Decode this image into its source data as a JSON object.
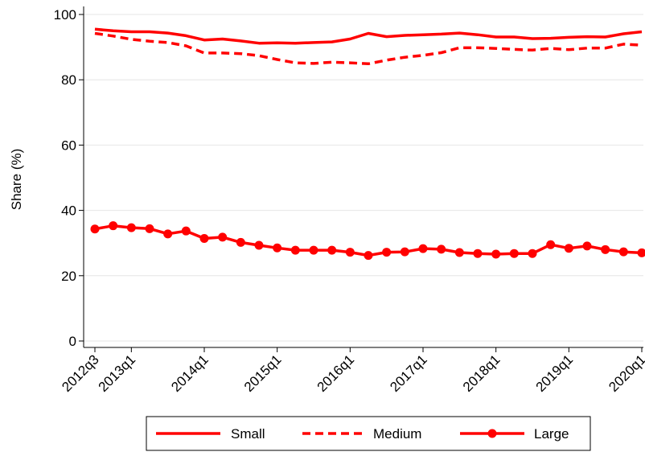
{
  "chart_data": {
    "type": "line",
    "title": "",
    "xlabel": "",
    "ylabel": "Share (%)",
    "ylim": [
      0,
      100
    ],
    "yticks": [
      0,
      20,
      40,
      60,
      80,
      100
    ],
    "xticks": [
      "2012q3",
      "2013q1",
      "2014q1",
      "2015q1",
      "2016q1",
      "2017q1",
      "2018q1",
      "2019q1",
      "2020q1"
    ],
    "x": [
      "2012q3",
      "2012q4",
      "2013q1",
      "2013q2",
      "2013q3",
      "2013q4",
      "2014q1",
      "2014q2",
      "2014q3",
      "2014q4",
      "2015q1",
      "2015q2",
      "2015q3",
      "2015q4",
      "2016q1",
      "2016q2",
      "2016q3",
      "2016q4",
      "2017q1",
      "2017q2",
      "2017q3",
      "2017q4",
      "2018q1",
      "2018q2",
      "2018q3",
      "2018q4",
      "2019q1",
      "2019q2",
      "2019q3",
      "2019q4",
      "2020q1"
    ],
    "grid": true,
    "legend_position": "bottom",
    "color": "#ff0000",
    "series": [
      {
        "name": "Small",
        "style": "solid",
        "values": [
          95.5,
          95,
          94.7,
          94.7,
          94.3,
          93.5,
          92.2,
          92.5,
          91.9,
          91.2,
          91.3,
          91.2,
          91.4,
          91.6,
          92.5,
          94.2,
          93.2,
          93.6,
          93.8,
          94.0,
          94.3,
          93.8,
          93.1,
          93.1,
          92.6,
          92.7,
          93.0,
          93.2,
          93.1,
          94.1,
          94.7
        ]
      },
      {
        "name": "Medium",
        "style": "dashed",
        "values": [
          94.2,
          93.4,
          92.4,
          91.8,
          91.4,
          90.4,
          88.2,
          88.2,
          88.0,
          87.4,
          86.2,
          85.2,
          85.0,
          85.4,
          85.2,
          84.9,
          86.0,
          86.9,
          87.5,
          88.3,
          89.8,
          89.8,
          89.6,
          89.3,
          89.1,
          89.6,
          89.2,
          89.7,
          89.7,
          90.9,
          90.6
        ]
      },
      {
        "name": "Large",
        "style": "solid-markers",
        "values": [
          34.3,
          35.3,
          34.7,
          34.4,
          32.8,
          33.7,
          31.4,
          31.8,
          30.2,
          29.3,
          28.5,
          27.8,
          27.8,
          27.8,
          27.2,
          26.2,
          27.2,
          27.3,
          28.3,
          28.1,
          27.1,
          26.8,
          26.6,
          26.8,
          26.8,
          29.5,
          28.4,
          29.1,
          28.0,
          27.3,
          27.0
        ]
      }
    ]
  }
}
